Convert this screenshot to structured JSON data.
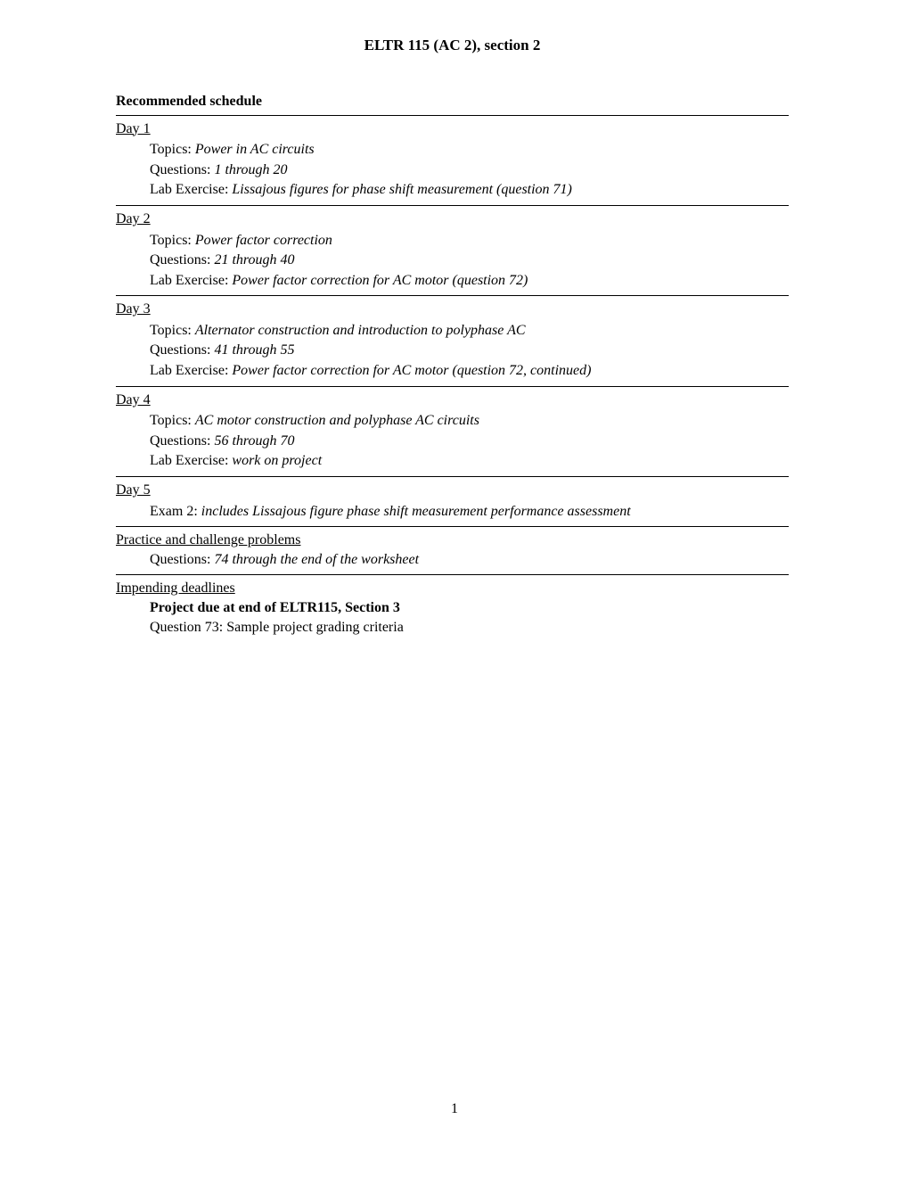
{
  "title": "ELTR 115 (AC 2), section 2",
  "heading": "Recommended schedule",
  "days": [
    {
      "label": "Day 1",
      "topics_prefix": "Topics: ",
      "topics": "Power in AC circuits",
      "questions_prefix": "Questions: ",
      "questions": "1 through 20",
      "lab_prefix": "Lab Exercise: ",
      "lab": "Lissajous figures for phase shift measurement (question 71)"
    },
    {
      "label": "Day 2",
      "topics_prefix": "Topics: ",
      "topics": "Power factor correction",
      "questions_prefix": "Questions: ",
      "questions": "21 through 40",
      "lab_prefix": "Lab Exercise: ",
      "lab": "Power factor correction for AC motor (question 72)"
    },
    {
      "label": "Day 3",
      "topics_prefix": "Topics: ",
      "topics": "Alternator construction and introduction to polyphase AC",
      "questions_prefix": "Questions: ",
      "questions": "41 through 55",
      "lab_prefix": "Lab Exercise: ",
      "lab": "Power factor correction for AC motor (question 72, continued)"
    },
    {
      "label": "Day 4",
      "topics_prefix": "Topics: ",
      "topics": "AC motor construction and polyphase AC circuits",
      "questions_prefix": "Questions: ",
      "questions": "56 through 70",
      "lab_prefix": "Lab Exercise: ",
      "lab": "work on project"
    }
  ],
  "day5": {
    "label": "Day 5",
    "exam_prefix": "Exam 2: ",
    "exam": "includes Lissajous figure phase shift measurement performance assessment"
  },
  "practice": {
    "title": "Practice and challenge problems",
    "questions_prefix": "Questions: ",
    "questions": "74 through the end of the worksheet"
  },
  "deadlines": {
    "title": "Impending deadlines",
    "bold_line": "Project due at end of ELTR115, Section 3",
    "line2": "Question 73: Sample project grading criteria"
  },
  "page_number": "1"
}
